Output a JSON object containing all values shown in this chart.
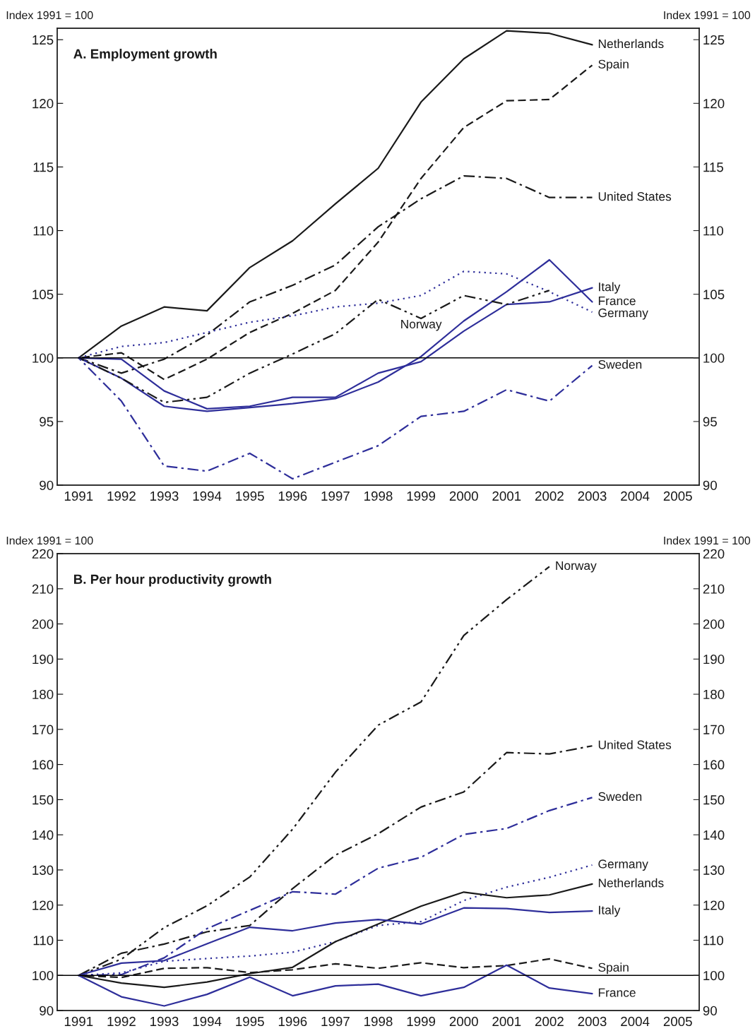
{
  "chart_data": [
    {
      "type": "line",
      "title": "A. Employment growth",
      "ylabel": "Index 1991 = 100",
      "y2label": "Index 1991 = 100",
      "x": [
        1991,
        1992,
        1993,
        1994,
        1995,
        1996,
        1997,
        1998,
        1999,
        2000,
        2001,
        2002,
        2003
      ],
      "xlim": [
        1990.5,
        2005.5
      ],
      "xticks": [
        1991,
        1992,
        1993,
        1994,
        1995,
        1996,
        1997,
        1998,
        1999,
        2000,
        2001,
        2002,
        2003,
        2004,
        2005
      ],
      "ylim": [
        90,
        125.9
      ],
      "yticks": [
        90,
        95,
        100,
        105,
        110,
        115,
        120,
        125
      ],
      "y2lim": [
        90,
        125.9
      ],
      "y2ticks": [
        90,
        95,
        100,
        105,
        110,
        115,
        120,
        125
      ],
      "grid": false,
      "legend": false,
      "ref_lines": [
        {
          "axis": "y",
          "value": 100,
          "color": "#000000"
        }
      ],
      "annotations": [
        {
          "text": "Norway",
          "x": 1999,
          "y": 103.1
        }
      ],
      "series": [
        {
          "name": "Netherlands",
          "color": "#1a1a1a",
          "line_style": "solid",
          "values": [
            100,
            102.5,
            104.0,
            103.7,
            107.1,
            109.2,
            112.1,
            114.9,
            120.1,
            123.5,
            125.7,
            125.5,
            124.6
          ]
        },
        {
          "name": "Spain",
          "color": "#1a1a1a",
          "line_style": "dashed",
          "values": [
            100,
            100.4,
            98.3,
            99.9,
            102.0,
            103.5,
            105.3,
            109.1,
            114.1,
            118.1,
            120.2,
            120.3,
            123.0
          ]
        },
        {
          "name": "United States",
          "color": "#1a1a1a",
          "line_style": "dashdot",
          "values": [
            100,
            98.8,
            99.9,
            101.8,
            104.4,
            105.7,
            107.3,
            110.3,
            112.5,
            114.3,
            114.1,
            112.6,
            112.6
          ]
        },
        {
          "name": "Italy",
          "color": "#2e2e9a",
          "line_style": "solid",
          "values": [
            100,
            99.9,
            97.4,
            96.0,
            96.2,
            96.9,
            96.9,
            98.8,
            99.7,
            102.1,
            104.2,
            104.4,
            105.5
          ]
        },
        {
          "name": "France",
          "color": "#2e2e9a",
          "line_style": "solid",
          "values": [
            100,
            98.4,
            96.2,
            95.8,
            96.1,
            96.4,
            96.8,
            98.1,
            100.1,
            102.9,
            105.2,
            107.7,
            104.4
          ]
        },
        {
          "name": "Germany",
          "color": "#2e2e9a",
          "line_style": "dotted",
          "values": [
            100,
            100.9,
            101.2,
            102.0,
            102.8,
            103.3,
            104.0,
            104.3,
            104.9,
            106.8,
            106.6,
            105.2,
            103.6
          ]
        },
        {
          "color": "#1a1a1a",
          "line_style": "dashdotdot",
          "values": [
            100,
            98.4,
            96.5,
            96.9,
            98.8,
            100.3,
            101.9,
            104.6,
            103.1,
            104.9,
            104.2,
            105.3,
            null
          ]
        },
        {
          "name": "Sweden",
          "color": "#2e2e9a",
          "line_style": "dashdot",
          "values": [
            100,
            96.6,
            91.5,
            91.1,
            92.5,
            90.5,
            91.8,
            93.1,
            95.4,
            95.8,
            97.5,
            96.6,
            99.4
          ]
        }
      ]
    },
    {
      "type": "line",
      "title": "B. Per hour productivity growth",
      "ylabel": "Index 1991 = 100",
      "y2label": "Index 1991 = 100",
      "x": [
        1991,
        1992,
        1993,
        1994,
        1995,
        1996,
        1997,
        1998,
        1999,
        2000,
        2001,
        2002,
        2003
      ],
      "xlim": [
        1990.5,
        2005.5
      ],
      "xticks": [
        1991,
        1992,
        1993,
        1994,
        1995,
        1996,
        1997,
        1998,
        1999,
        2000,
        2001,
        2002,
        2003,
        2004,
        2005
      ],
      "ylim": [
        90,
        220
      ],
      "yticks": [
        90,
        100,
        110,
        120,
        130,
        140,
        150,
        160,
        170,
        180,
        190,
        200,
        210,
        220
      ],
      "y2lim": [
        90,
        220
      ],
      "y2ticks": [
        90,
        100,
        110,
        120,
        130,
        140,
        150,
        160,
        170,
        180,
        190,
        200,
        210,
        220
      ],
      "grid": false,
      "legend": false,
      "ref_lines": [
        {
          "axis": "y",
          "value": 100,
          "color": "#000000"
        }
      ],
      "series": [
        {
          "name": "Norway",
          "color": "#1a1a1a",
          "line_style": "dashdotdot",
          "values": [
            100,
            104.6,
            113.6,
            119.8,
            128.0,
            141.6,
            157.8,
            171.2,
            177.8,
            196.7,
            206.9,
            216.3,
            null
          ]
        },
        {
          "name": "United States",
          "color": "#1a1a1a",
          "line_style": "dashdot",
          "values": [
            100,
            106.3,
            108.9,
            112.4,
            114.2,
            124.7,
            134.2,
            140.3,
            147.9,
            152.2,
            163.4,
            163.0,
            165.3
          ]
        },
        {
          "name": "Sweden",
          "color": "#2e2e9a",
          "line_style": "dashdot",
          "values": [
            100,
            100.2,
            105.0,
            113.3,
            118.5,
            123.8,
            123.1,
            130.5,
            133.6,
            140.1,
            141.8,
            146.9,
            150.6
          ]
        },
        {
          "name": "Germany",
          "color": "#2e2e9a",
          "line_style": "dotted",
          "values": [
            100,
            100.7,
            104.0,
            104.8,
            105.5,
            106.6,
            109.6,
            114.2,
            115.3,
            121.3,
            125.1,
            127.9,
            131.4
          ]
        },
        {
          "name": "Netherlands",
          "color": "#1a1a1a",
          "line_style": "solid",
          "values": [
            100,
            97.8,
            96.6,
            98.1,
            100.5,
            102.3,
            109.6,
            114.6,
            119.7,
            123.7,
            122.1,
            122.9,
            126.0
          ]
        },
        {
          "name": "Italy",
          "color": "#2e2e9a",
          "line_style": "solid",
          "values": [
            100,
            103.5,
            104.2,
            109.0,
            113.7,
            112.7,
            114.9,
            115.9,
            114.6,
            119.2,
            119.0,
            117.9,
            118.3
          ]
        },
        {
          "name": "Spain",
          "color": "#1a1a1a",
          "line_style": "dashed",
          "values": [
            100,
            99.4,
            102.0,
            102.2,
            100.8,
            101.6,
            103.3,
            102.0,
            103.6,
            102.2,
            102.8,
            104.7,
            102.0
          ]
        },
        {
          "name": "France",
          "color": "#2e2e9a",
          "line_style": "solid",
          "values": [
            100,
            93.9,
            91.3,
            94.6,
            99.5,
            94.2,
            97.0,
            97.5,
            94.2,
            96.6,
            102.9,
            96.4,
            94.8
          ]
        }
      ]
    }
  ]
}
